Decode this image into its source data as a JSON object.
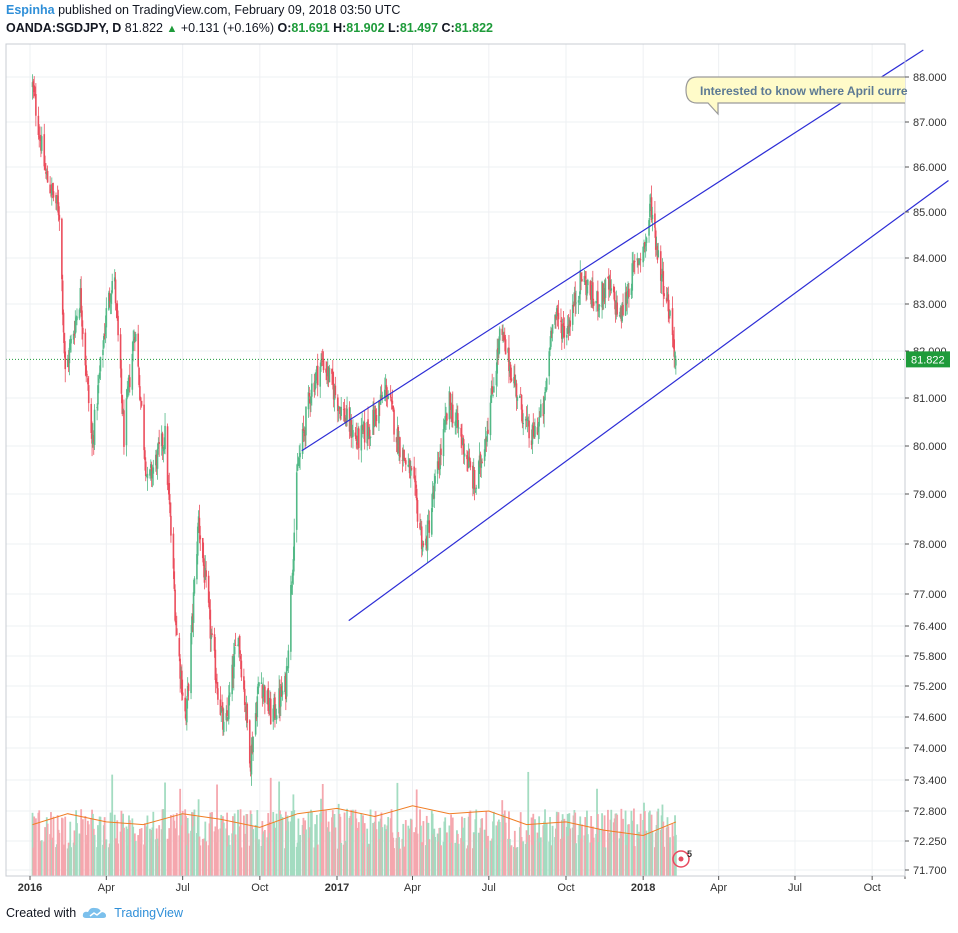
{
  "header": {
    "author": "Espinha",
    "published_text": "published on TradingView.com, February 09, 2018 03:50 UTC"
  },
  "symbol_bar": {
    "symbol": "OANDA:SGDJPY, D",
    "last": "81.822",
    "change": "+0.131 (+0.16%)",
    "o_label": "O:",
    "o_value": "81.691",
    "h_label": "H:",
    "h_value": "81.902",
    "l_label": "L:",
    "l_value": "81.497",
    "c_label": "C:",
    "c_value": "81.822"
  },
  "annotation": {
    "text": "Interested to know where April curre",
    "badge_count": "5"
  },
  "footer": {
    "created_with": "Created with",
    "brand": "TradingView"
  },
  "colors": {
    "up": "#53b987",
    "down": "#eb4d5c",
    "channel": "#2d2dd6",
    "price_line": "#1e9b3a",
    "volume_ma": "#f07d24"
  },
  "chart_data": {
    "type": "candlestick",
    "title": "OANDA:SGDJPY, D",
    "y_axis_labels": [
      "88.000",
      "87.000",
      "86.000",
      "85.000",
      "84.000",
      "83.000",
      "82.000",
      "81.000",
      "80.000",
      "79.000",
      "78.000",
      "77.000",
      "76.400",
      "75.800",
      "75.200",
      "74.600",
      "74.000",
      "73.400",
      "72.800",
      "72.250",
      "71.700"
    ],
    "x_axis_labels": [
      "2016",
      "Apr",
      "Jul",
      "Oct",
      "2017",
      "Apr",
      "Jul",
      "Oct",
      "2018",
      "Apr",
      "Jul",
      "Oct"
    ],
    "last_price_label": "81.822",
    "price_path": [
      [
        "2016-01-04",
        87.8
      ],
      [
        "2016-01-20",
        85.8
      ],
      [
        "2016-02-05",
        85.0
      ],
      [
        "2016-02-12",
        81.5
      ],
      [
        "2016-03-01",
        83.2
      ],
      [
        "2016-03-15",
        80.0
      ],
      [
        "2016-04-01",
        82.8
      ],
      [
        "2016-04-10",
        83.7
      ],
      [
        "2016-04-22",
        80.2
      ],
      [
        "2016-05-05",
        82.5
      ],
      [
        "2016-05-20",
        79.2
      ],
      [
        "2016-06-10",
        80.2
      ],
      [
        "2016-06-24",
        76.2
      ],
      [
        "2016-07-05",
        74.5
      ],
      [
        "2016-07-20",
        78.5
      ],
      [
        "2016-08-05",
        76.0
      ],
      [
        "2016-08-20",
        74.2
      ],
      [
        "2016-09-05",
        76.3
      ],
      [
        "2016-09-20",
        73.8
      ],
      [
        "2016-10-01",
        75.4
      ],
      [
        "2016-10-15",
        74.6
      ],
      [
        "2016-11-01",
        75.2
      ],
      [
        "2016-11-15",
        79.5
      ],
      [
        "2016-12-01",
        81.2
      ],
      [
        "2016-12-15",
        81.8
      ],
      [
        "2017-01-05",
        80.8
      ],
      [
        "2017-01-25",
        80.1
      ],
      [
        "2017-02-10",
        80.4
      ],
      [
        "2017-03-01",
        81.2
      ],
      [
        "2017-03-15",
        80.1
      ],
      [
        "2017-04-01",
        79.3
      ],
      [
        "2017-04-15",
        77.8
      ],
      [
        "2017-05-01",
        79.5
      ],
      [
        "2017-05-15",
        80.9
      ],
      [
        "2017-06-01",
        80.0
      ],
      [
        "2017-06-15",
        79.1
      ],
      [
        "2017-07-01",
        80.6
      ],
      [
        "2017-07-15",
        82.4
      ],
      [
        "2017-08-01",
        81.3
      ],
      [
        "2017-08-20",
        80.1
      ],
      [
        "2017-09-05",
        80.8
      ],
      [
        "2017-09-15",
        82.8
      ],
      [
        "2017-10-01",
        82.4
      ],
      [
        "2017-10-20",
        83.6
      ],
      [
        "2017-11-05",
        83.0
      ],
      [
        "2017-11-20",
        83.4
      ],
      [
        "2017-12-05",
        82.7
      ],
      [
        "2017-12-20",
        83.7
      ],
      [
        "2018-01-05",
        84.4
      ],
      [
        "2018-01-10",
        85.2
      ],
      [
        "2018-01-20",
        83.9
      ],
      [
        "2018-02-01",
        82.9
      ],
      [
        "2018-02-09",
        81.82
      ]
    ],
    "volume_ma": [
      [
        "2016-01-04",
        72.55
      ],
      [
        "2016-02-15",
        72.75
      ],
      [
        "2016-04-01",
        72.6
      ],
      [
        "2016-05-15",
        72.55
      ],
      [
        "2016-07-01",
        72.75
      ],
      [
        "2016-08-15",
        72.65
      ],
      [
        "2016-10-01",
        72.5
      ],
      [
        "2016-11-15",
        72.75
      ],
      [
        "2017-01-01",
        72.85
      ],
      [
        "2017-02-15",
        72.7
      ],
      [
        "2017-04-01",
        72.9
      ],
      [
        "2017-05-15",
        72.75
      ],
      [
        "2017-07-01",
        72.8
      ],
      [
        "2017-08-15",
        72.55
      ],
      [
        "2017-10-01",
        72.6
      ],
      [
        "2017-11-15",
        72.45
      ],
      [
        "2018-01-01",
        72.35
      ],
      [
        "2018-02-09",
        72.6
      ]
    ],
    "channel_lines": [
      {
        "name": "upper",
        "from": [
          "2016-11-20",
          79.9
        ],
        "to": [
          "2018-12-01",
          88.6
        ]
      },
      {
        "name": "lower",
        "from": [
          "2017-01-15",
          76.5
        ],
        "to": [
          "2018-12-31",
          85.7
        ]
      }
    ]
  }
}
